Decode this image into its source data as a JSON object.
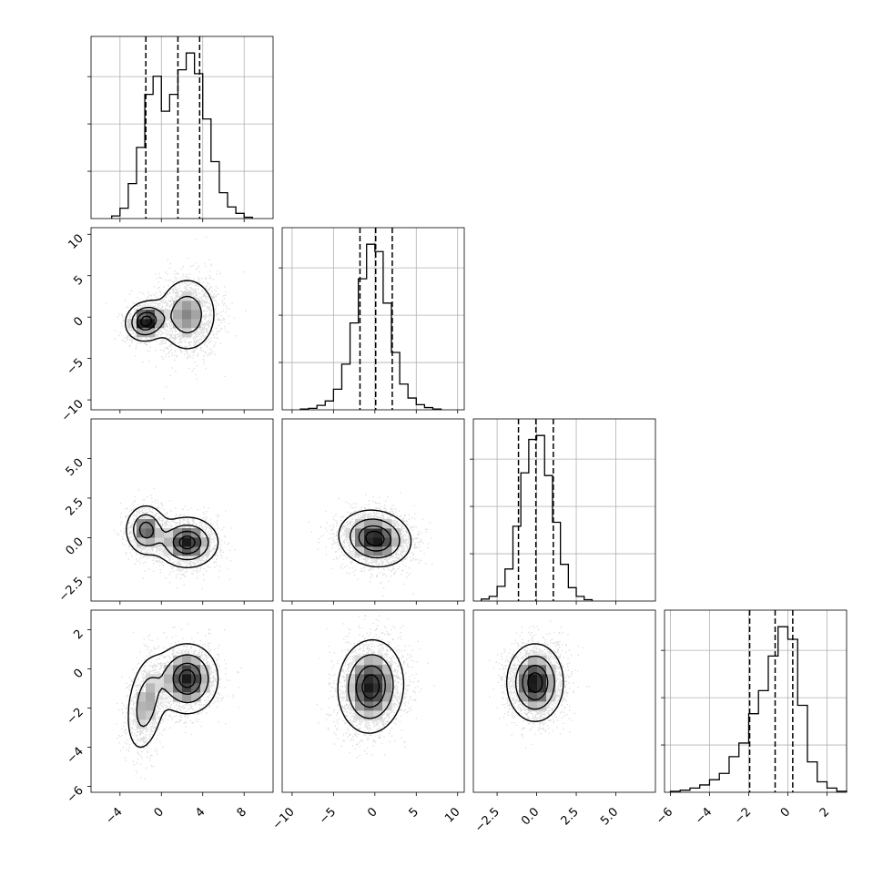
{
  "chart_data": {
    "type": "corner",
    "variables": 4,
    "colors": {
      "line": "#000000",
      "grid": "#b0b0b0",
      "scatter": "#9a9a9a"
    },
    "grid": true,
    "quantiles": [
      0.16,
      0.5,
      0.84
    ],
    "ranges": [
      [
        -6.8,
        10.8
      ],
      [
        -11.2,
        10.8
      ],
      [
        -4.0,
        7.5
      ],
      [
        -6.3,
        3.0
      ]
    ],
    "ticks": [
      {
        "values": [
          -4,
          0,
          4,
          8
        ],
        "labels": [
          "−4",
          "0",
          "4",
          "8"
        ]
      },
      {
        "values": [
          -10,
          -5,
          0,
          5,
          10
        ],
        "labels": [
          "−10",
          "−5",
          "0",
          "5",
          "10"
        ]
      },
      {
        "values": [
          -2.5,
          0.0,
          2.5,
          5.0
        ],
        "labels": [
          "−2.5",
          "0.0",
          "2.5",
          "5.0"
        ]
      },
      {
        "values": [
          -6,
          -4,
          -2,
          0,
          2
        ],
        "labels": [
          "−6",
          "−4",
          "−2",
          "0",
          "2"
        ]
      }
    ],
    "histograms": [
      {
        "variable": 0,
        "bin_edges": [
          -4.8,
          -4.0,
          -3.2,
          -2.4,
          -1.6,
          -0.8,
          0.0,
          0.8,
          1.6,
          2.4,
          3.2,
          4.0,
          4.8,
          5.6,
          6.4,
          7.2,
          8.0,
          8.8
        ],
        "counts": [
          2,
          8,
          27,
          55,
          96,
          110,
          83,
          96,
          115,
          128,
          112,
          77,
          44,
          20,
          9,
          4,
          1
        ],
        "quantile_values": [
          -1.5,
          1.6,
          3.7
        ]
      },
      {
        "variable": 1,
        "bin_edges": [
          -9.0,
          -8.0,
          -7.0,
          -6.0,
          -5.0,
          -4.0,
          -3.0,
          -2.0,
          -1.0,
          0.0,
          1.0,
          2.0,
          3.0,
          4.0,
          5.0,
          6.0,
          7.0,
          8.0
        ],
        "counts": [
          1,
          2,
          6,
          12,
          28,
          62,
          118,
          178,
          225,
          215,
          145,
          78,
          35,
          16,
          7,
          3,
          1
        ],
        "quantile_values": [
          -1.8,
          0.1,
          2.1
        ]
      },
      {
        "variable": 2,
        "bin_edges": [
          -3.5,
          -3.0,
          -2.5,
          -2.0,
          -1.5,
          -1.0,
          -0.5,
          0.0,
          0.5,
          1.0,
          1.5,
          2.0,
          2.5,
          3.0,
          3.5
        ],
        "counts": [
          3,
          7,
          22,
          48,
          112,
          192,
          242,
          248,
          188,
          118,
          55,
          20,
          7,
          2
        ],
        "quantile_values": [
          -1.15,
          -0.05,
          1.05
        ]
      },
      {
        "variable": 3,
        "bin_edges": [
          -6.0,
          -5.5,
          -5.0,
          -4.5,
          -4.0,
          -3.5,
          -3.0,
          -2.5,
          -2.0,
          -1.5,
          -1.0,
          -0.5,
          0.0,
          0.5,
          1.0,
          1.5,
          2.0,
          2.5,
          3.0
        ],
        "counts": [
          1,
          2,
          4,
          7,
          12,
          18,
          34,
          47,
          75,
          97,
          130,
          158,
          146,
          83,
          29,
          10,
          4,
          1
        ],
        "quantile_values": [
          -1.95,
          -0.65,
          0.25
        ]
      }
    ],
    "pairs": [
      {
        "x": 0,
        "y": 1,
        "components": [
          {
            "weight": 0.35,
            "mean": [
              -1.5,
              -0.5
            ],
            "sd": [
              1.0,
              1.2
            ],
            "rho": 0.1
          },
          {
            "weight": 0.65,
            "mean": [
              2.5,
              0.3
            ],
            "sd": [
              1.5,
              2.4
            ],
            "rho": 0.0
          }
        ]
      },
      {
        "x": 0,
        "y": 2,
        "components": [
          {
            "weight": 0.35,
            "mean": [
              -1.5,
              0.5
            ],
            "sd": [
              1.0,
              0.8
            ],
            "rho": 0.0
          },
          {
            "weight": 0.65,
            "mean": [
              2.5,
              -0.3
            ],
            "sd": [
              1.5,
              0.8
            ],
            "rho": 0.0
          }
        ]
      },
      {
        "x": 0,
        "y": 3,
        "components": [
          {
            "weight": 0.35,
            "mean": [
              -1.5,
              -1.8
            ],
            "sd": [
              1.0,
              1.3
            ],
            "rho": 0.3
          },
          {
            "weight": 0.65,
            "mean": [
              2.5,
              -0.5
            ],
            "sd": [
              1.5,
              0.9
            ],
            "rho": 0.0
          }
        ]
      },
      {
        "x": 1,
        "y": 2,
        "components": [
          {
            "weight": 1.0,
            "mean": [
              0.0,
              -0.05
            ],
            "sd": [
              2.2,
              0.9
            ],
            "rho": -0.1
          }
        ]
      },
      {
        "x": 1,
        "y": 3,
        "components": [
          {
            "weight": 1.0,
            "mean": [
              -0.5,
              -0.9
            ],
            "sd": [
              2.0,
              1.2
            ],
            "rho": 0.05
          }
        ]
      },
      {
        "x": 2,
        "y": 3,
        "components": [
          {
            "weight": 1.0,
            "mean": [
              -0.1,
              -0.7
            ],
            "sd": [
              0.9,
              1.0
            ],
            "rho": 0.0
          }
        ]
      }
    ],
    "contour_levels_relative": [
      0.14,
      0.4,
      0.68,
      0.88
    ]
  }
}
